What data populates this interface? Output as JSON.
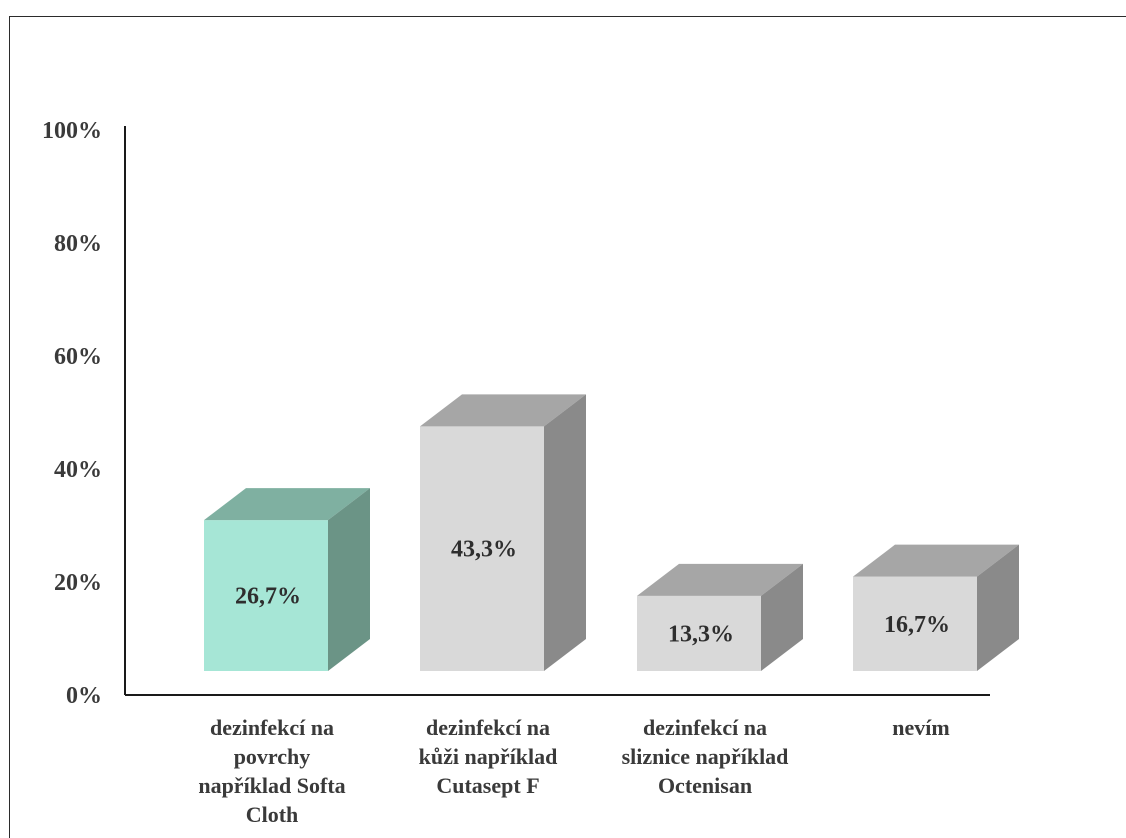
{
  "chart_data": {
    "type": "bar",
    "title": "",
    "xlabel": "",
    "ylabel": "",
    "ylim": [
      0,
      100
    ],
    "y_ticks": [
      "0%",
      "20%",
      "40%",
      "60%",
      "80%",
      "100%"
    ],
    "categories": [
      [
        "dezinfekcí na",
        "povrchy",
        "například Softa",
        "Cloth"
      ],
      [
        "dezinfekcí na",
        "kůži například",
        "Cutasept F"
      ],
      [
        "dezinfekcí na",
        "sliznice například",
        "Octenisan"
      ],
      [
        "nevím"
      ]
    ],
    "values": [
      26.7,
      43.3,
      13.3,
      16.7
    ],
    "value_labels": [
      "26,7%",
      "43,3%",
      "13,3%",
      "16,7%"
    ],
    "grid": false,
    "legend": false,
    "colors": {
      "highlight_front": "#a6e6d6",
      "highlight_top": "#7fb0a1",
      "highlight_side": "#6b9486",
      "default_front": "#d9d9d9",
      "default_top": "#a6a6a6",
      "default_side": "#8a8a8a",
      "axis": "#1a1a1a",
      "text": "#3a3a3a"
    },
    "highlight_index": 0
  }
}
